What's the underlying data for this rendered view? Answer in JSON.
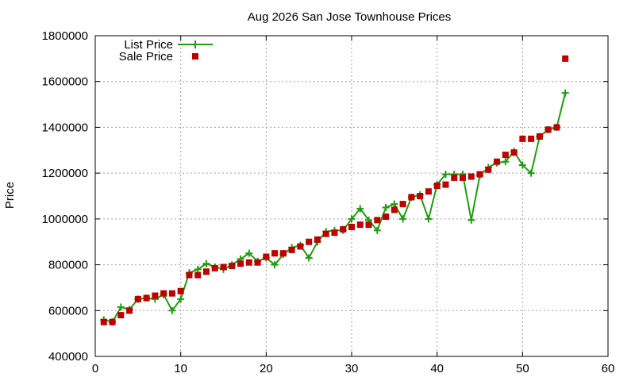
{
  "chart_data": {
    "type": "line",
    "title": "Aug 2026 San Jose Townhouse Prices",
    "xlabel": "",
    "ylabel": "Price",
    "xlim": [
      0,
      60
    ],
    "ylim": [
      400000,
      1800000
    ],
    "xticks": [
      0,
      10,
      20,
      30,
      40,
      50,
      60
    ],
    "yticks": [
      400000,
      600000,
      800000,
      1000000,
      1200000,
      1400000,
      1600000,
      1800000
    ],
    "xtick_labels": [
      "0",
      "10",
      "20",
      "30",
      "40",
      "50",
      "60"
    ],
    "ytick_labels": [
      "400000",
      "600000",
      "800000",
      "1000000",
      "1200000",
      "1400000",
      "1600000",
      "1800000"
    ],
    "grid": true,
    "legend_position": "top-left",
    "series": [
      {
        "name": "List Price",
        "style": "line-plus",
        "color": "#1f9e0f",
        "x": [
          1,
          2,
          3,
          4,
          5,
          6,
          7,
          8,
          9,
          10,
          11,
          12,
          13,
          14,
          15,
          16,
          17,
          18,
          19,
          20,
          21,
          22,
          23,
          24,
          25,
          26,
          27,
          28,
          29,
          30,
          31,
          32,
          33,
          34,
          35,
          36,
          37,
          38,
          39,
          40,
          41,
          42,
          43,
          44,
          45,
          46,
          47,
          48,
          49,
          50,
          51,
          52,
          53,
          54,
          55
        ],
        "values": [
          560000,
          550000,
          615000,
          605000,
          650000,
          655000,
          650000,
          670000,
          600000,
          650000,
          765000,
          780000,
          805000,
          790000,
          780000,
          800000,
          825000,
          850000,
          815000,
          830000,
          800000,
          845000,
          875000,
          885000,
          830000,
          900000,
          945000,
          950000,
          950000,
          1000000,
          1045000,
          995000,
          950000,
          1050000,
          1065000,
          1000000,
          1095000,
          1105000,
          1000000,
          1150000,
          1195000,
          1195000,
          1195000,
          995000,
          1190000,
          1225000,
          1245000,
          1250000,
          1295000,
          1235000,
          1200000,
          1360000,
          1390000,
          1400000,
          1550000
        ]
      },
      {
        "name": "Sale Price",
        "style": "square",
        "color": "#c00000",
        "x": [
          1,
          2,
          3,
          4,
          5,
          6,
          7,
          8,
          9,
          10,
          11,
          12,
          13,
          14,
          15,
          16,
          17,
          18,
          19,
          20,
          21,
          22,
          23,
          24,
          25,
          26,
          27,
          28,
          29,
          30,
          31,
          32,
          33,
          34,
          35,
          36,
          37,
          38,
          39,
          40,
          41,
          42,
          43,
          44,
          45,
          46,
          47,
          48,
          49,
          50,
          51,
          52,
          53,
          54,
          55
        ],
        "values": [
          550000,
          550000,
          580000,
          600000,
          650000,
          655000,
          665000,
          675000,
          675000,
          685000,
          755000,
          755000,
          770000,
          785000,
          790000,
          795000,
          805000,
          810000,
          810000,
          835000,
          850000,
          850000,
          865000,
          880000,
          900000,
          910000,
          935000,
          940000,
          955000,
          965000,
          975000,
          975000,
          995000,
          1010000,
          1040000,
          1065000,
          1095000,
          1100000,
          1120000,
          1145000,
          1150000,
          1180000,
          1180000,
          1185000,
          1195000,
          1215000,
          1250000,
          1280000,
          1290000,
          1350000,
          1350000,
          1360000,
          1390000,
          1400000,
          1700000
        ]
      }
    ]
  }
}
